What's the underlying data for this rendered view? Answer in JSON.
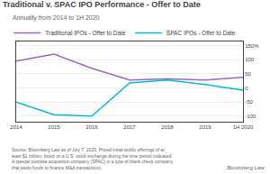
{
  "chart_data": {
    "type": "line",
    "title": "Traditional v. SPAC IPO Performance - Offer to Date",
    "subtitle": "Annually from 2014 to 1H 2020",
    "categories": [
      "2014",
      "2015",
      "2016",
      "2017",
      "2018",
      "2019",
      "1H 2020"
    ],
    "series": [
      {
        "name": "Traditional IPOs - Offer to Date",
        "color": "#9966cc",
        "values": [
          95,
          120,
          70,
          28,
          32,
          28,
          38
        ]
      },
      {
        "name": "SPAC IPOs - Offer to Date",
        "color": "#00bcd4",
        "values": [
          -50,
          -95,
          -100,
          18,
          28,
          12,
          -8
        ]
      }
    ],
    "ylim": [
      -120,
      165
    ],
    "yticks": [
      -100,
      -50,
      0,
      50,
      100,
      {
        "value": 150,
        "label": "150%"
      }
    ],
    "grid": true,
    "legend": "top",
    "annotations": [
      "Source: Bloomberg Law as of July 7, 2020. Priced initial public offerings of at\nleast $1 million, listed on a U.S. stock exchange during the time period indicated.\nA special purpose acquisition company (SPAC) is a type of blank check company\nthat pools funds to finance M&A transactions.",
      "Bloomberg Law"
    ]
  }
}
